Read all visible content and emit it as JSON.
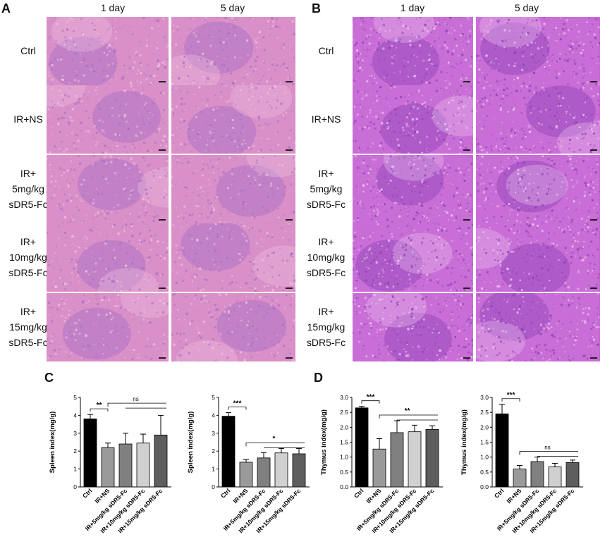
{
  "colors": {
    "spleen_base": "#d98fc8",
    "spleen_dark": "#a66fc4",
    "spleen_light": "#efc2e0",
    "thymus_base": "#c96ed6",
    "thymus_dark": "#8e43b8",
    "thymus_light": "#ecc6ef",
    "bar_ctrl": "#000000",
    "bar_ns": "#9a9a9a",
    "bar_5": "#808080",
    "bar_10": "#d0d0d0",
    "bar_15": "#5e5e5e"
  },
  "panelA": {
    "label": "A",
    "columns": [
      "1 day",
      "5 day"
    ],
    "rows": [
      {
        "lines": [
          "Ctrl"
        ]
      },
      {
        "lines": [
          "IR+NS"
        ]
      },
      {
        "lines": [
          "IR+",
          "5mg/kg",
          "sDR5-Fc"
        ]
      },
      {
        "lines": [
          "IR+",
          "10mg/kg",
          "sDR5-Fc"
        ]
      },
      {
        "lines": [
          "IR+",
          "15mg/kg",
          "sDR5-Fc"
        ]
      }
    ]
  },
  "panelB": {
    "label": "B",
    "columns": [
      "1 day",
      "5 day"
    ],
    "rows": [
      {
        "lines": [
          "Ctrl"
        ]
      },
      {
        "lines": [
          "IR+NS"
        ]
      },
      {
        "lines": [
          "IR+",
          "5mg/kg",
          "sDR5-Fc"
        ]
      },
      {
        "lines": [
          "IR+",
          "10mg/kg",
          "sDR5-Fc"
        ]
      },
      {
        "lines": [
          "IR+",
          "15mg/kg",
          "sDR5-Fc"
        ]
      }
    ]
  },
  "panelC": {
    "label": "C"
  },
  "panelD": {
    "label": "D"
  },
  "chart_data": [
    {
      "type": "bar",
      "panel": "C",
      "ylabel": "Spleen index(mg/g)",
      "categories": [
        "Ctrl",
        "IR+NS",
        "IR+5mg/kg sDR5-Fc",
        "IR+10mg/kg sDR5-Fc",
        "IR+15mg/kg sDR5-Fc"
      ],
      "values": [
        3.8,
        2.2,
        2.4,
        2.45,
        2.9
      ],
      "errors": [
        0.25,
        0.25,
        0.6,
        0.5,
        1.1
      ],
      "ylim": [
        0,
        5
      ],
      "yticks": [
        "0",
        "1",
        "2",
        "3",
        "4",
        "5"
      ],
      "annotations": [
        "**",
        "ns"
      ]
    },
    {
      "type": "bar",
      "panel": "C",
      "ylabel": "Spleen index(mg/g)",
      "categories": [
        "Ctrl",
        "IR+NS",
        "IR+5mg/kg sDR5-Fc",
        "IR+10mg/kg sDR5-Fc",
        "IR+15mg/kg sDR5-Fc"
      ],
      "values": [
        3.95,
        1.38,
        1.62,
        1.9,
        1.85
      ],
      "errors": [
        0.2,
        0.15,
        0.3,
        0.25,
        0.3
      ],
      "ylim": [
        0,
        5
      ],
      "yticks": [
        "0",
        "1",
        "2",
        "3",
        "4",
        "5"
      ],
      "annotations": [
        "***",
        "*"
      ]
    },
    {
      "type": "bar",
      "panel": "D",
      "ylabel": "Thymus index(mg/g)",
      "categories": [
        "Ctrl",
        "IR+NS",
        "IR+5mg/kg sDR5-Fc",
        "IR+10mg/kg sDR5-Fc",
        "IR+15mg/kg sDR5-Fc"
      ],
      "values": [
        2.65,
        1.27,
        1.82,
        1.85,
        1.93
      ],
      "errors": [
        0.05,
        0.35,
        0.4,
        0.22,
        0.12
      ],
      "ylim": [
        0,
        3.0
      ],
      "yticks": [
        "0.0",
        "0.5",
        "1.0",
        "1.5",
        "2.0",
        "2.5",
        "3.0"
      ],
      "annotations": [
        "***",
        "**"
      ]
    },
    {
      "type": "bar",
      "panel": "D",
      "ylabel": "Thymus index(mg/g)",
      "categories": [
        "Ctrl",
        "IR+NS",
        "IR+5mg/kg sDR5-Fc",
        "IR+10mg/kg sDR5-Fc",
        "IR+15mg/kg sDR5-Fc"
      ],
      "values": [
        2.45,
        0.6,
        0.85,
        0.67,
        0.82
      ],
      "errors": [
        0.32,
        0.12,
        0.15,
        0.12,
        0.08
      ],
      "ylim": [
        0,
        3.0
      ],
      "yticks": [
        "0.0",
        "0.5",
        "1.0",
        "1.5",
        "2.0",
        "2.5",
        "3.0"
      ],
      "annotations": [
        "***",
        "ns"
      ]
    }
  ]
}
